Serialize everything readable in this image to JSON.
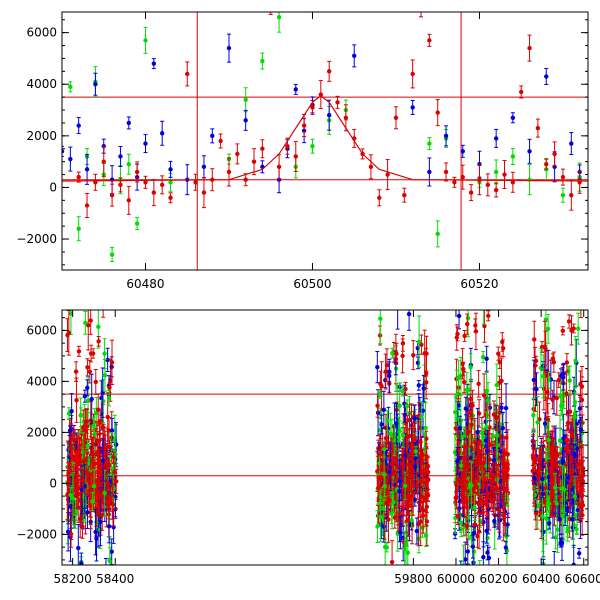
{
  "chart_data": [
    {
      "type": "scatter",
      "panel": "top",
      "xlim": [
        60470,
        60533
      ],
      "ylim": [
        -3200,
        6800
      ],
      "x_ticks": [
        60480,
        60500,
        60520
      ],
      "y_ticks": [
        -2000,
        0,
        2000,
        4000,
        6000
      ],
      "x_tick_labels": [
        "60480",
        "60500",
        "60520"
      ],
      "y_tick_labels": [
        "−2000",
        "0",
        "2000",
        "4000",
        "6000"
      ],
      "hlines": [
        3500,
        300
      ],
      "vlines": [
        60486.2,
        60517.8
      ],
      "series": [
        {
          "color": "#00dd00",
          "points": [
            [
              60471,
              3900
            ],
            [
              60472,
              -1600
            ],
            [
              60473,
              1200
            ],
            [
              60474,
              4100
            ],
            [
              60475,
              500
            ],
            [
              60476,
              -2600
            ],
            [
              60477,
              300
            ],
            [
              60478,
              900
            ],
            [
              60479,
              -1400
            ],
            [
              60480,
              5700
            ],
            [
              60483,
              200
            ],
            [
              60490,
              1100
            ],
            [
              60492,
              3400
            ],
            [
              60494,
              4900
            ],
            [
              60496,
              6600
            ],
            [
              60498,
              800
            ],
            [
              60500,
              1600
            ],
            [
              60502,
              2600
            ],
            [
              60504,
              3000
            ],
            [
              60514,
              1700
            ],
            [
              60515,
              -1800
            ],
            [
              60516,
              1900
            ],
            [
              60520,
              200
            ],
            [
              60522,
              600
            ],
            [
              60524,
              1200
            ],
            [
              60526,
              300
            ],
            [
              60528,
              700
            ],
            [
              60530,
              -300
            ],
            [
              60532,
              400
            ]
          ]
        },
        {
          "color": "#0000dd",
          "points": [
            [
              60470,
              1400
            ],
            [
              60471,
              1100
            ],
            [
              60472,
              2400
            ],
            [
              60473,
              700
            ],
            [
              60474,
              4000
            ],
            [
              60475,
              1600
            ],
            [
              60476,
              300
            ],
            [
              60477,
              1200
            ],
            [
              60478,
              2500
            ],
            [
              60479,
              400
            ],
            [
              60480,
              1700
            ],
            [
              60481,
              4800
            ],
            [
              60482,
              2100
            ],
            [
              60483,
              700
            ],
            [
              60485,
              300
            ],
            [
              60487,
              800
            ],
            [
              60488,
              2000
            ],
            [
              60490,
              5400
            ],
            [
              60492,
              2600
            ],
            [
              60494,
              800
            ],
            [
              60496,
              300
            ],
            [
              60497,
              1500
            ],
            [
              60498,
              3800
            ],
            [
              60499,
              2200
            ],
            [
              60500,
              3200
            ],
            [
              60502,
              2800
            ],
            [
              60505,
              5100
            ],
            [
              60512,
              3100
            ],
            [
              60514,
              600
            ],
            [
              60516,
              2000
            ],
            [
              60518,
              1400
            ],
            [
              60520,
              900
            ],
            [
              60522,
              1900
            ],
            [
              60524,
              2700
            ],
            [
              60526,
              1400
            ],
            [
              60528,
              4300
            ],
            [
              60529,
              800
            ],
            [
              60531,
              1700
            ],
            [
              60532,
              600
            ]
          ]
        },
        {
          "color": "#dd0000",
          "points": [
            [
              60472,
              400
            ],
            [
              60473,
              -700
            ],
            [
              60474,
              200
            ],
            [
              60475,
              1000
            ],
            [
              60476,
              -300
            ],
            [
              60477,
              100
            ],
            [
              60478,
              -500
            ],
            [
              60479,
              600
            ],
            [
              60480,
              200
            ],
            [
              60481,
              -200
            ],
            [
              60482,
              100
            ],
            [
              60483,
              -400
            ],
            [
              60485,
              4400
            ],
            [
              60486,
              200
            ],
            [
              60487,
              -200
            ],
            [
              60488,
              300
            ],
            [
              60489,
              1800
            ],
            [
              60490,
              600
            ],
            [
              60491,
              1300
            ],
            [
              60492,
              300
            ],
            [
              60493,
              1000
            ],
            [
              60494,
              1500
            ],
            [
              60495,
              6900
            ],
            [
              60496,
              800
            ],
            [
              60497,
              1600
            ],
            [
              60498,
              1200
            ],
            [
              60499,
              2400
            ],
            [
              60500,
              3100
            ],
            [
              60501,
              3600
            ],
            [
              60502,
              4500
            ],
            [
              60503,
              3300
            ],
            [
              60504,
              2700
            ],
            [
              60505,
              1900
            ],
            [
              60506,
              1300
            ],
            [
              60507,
              800
            ],
            [
              60508,
              -400
            ],
            [
              60509,
              500
            ],
            [
              60510,
              2700
            ],
            [
              60511,
              -300
            ],
            [
              60512,
              4400
            ],
            [
              60513,
              7000
            ],
            [
              60514,
              5700
            ],
            [
              60515,
              2900
            ],
            [
              60516,
              600
            ],
            [
              60517,
              200
            ],
            [
              60518,
              400
            ],
            [
              60519,
              -200
            ],
            [
              60520,
              300
            ],
            [
              60521,
              100
            ],
            [
              60522,
              -100
            ],
            [
              60523,
              500
            ],
            [
              60524,
              200
            ],
            [
              60525,
              3700
            ],
            [
              60526,
              5400
            ],
            [
              60527,
              2300
            ],
            [
              60528,
              900
            ],
            [
              60529,
              1300
            ],
            [
              60530,
              400
            ],
            [
              60531,
              -300
            ],
            [
              60532,
              200
            ]
          ]
        }
      ],
      "model_curve": [
        [
          60470,
          250
        ],
        [
          60490,
          300
        ],
        [
          60494,
          700
        ],
        [
          60496,
          1300
        ],
        [
          60498,
          2300
        ],
        [
          60500,
          3300
        ],
        [
          60501,
          3550
        ],
        [
          60502,
          3300
        ],
        [
          60504,
          2300
        ],
        [
          60506,
          1300
        ],
        [
          60508,
          700
        ],
        [
          60512,
          300
        ],
        [
          60533,
          250
        ]
      ]
    },
    {
      "type": "scatter",
      "panel": "bottom",
      "xlim": [
        58150,
        60620
      ],
      "ylim": [
        -3200,
        6800
      ],
      "x_ticks": [
        58200,
        58400,
        59800,
        60000,
        60200,
        60400,
        60600
      ],
      "y_ticks": [
        -2000,
        0,
        2000,
        4000,
        6000
      ],
      "x_tick_labels": [
        "58200",
        "58400",
        "59800",
        "60000",
        "60200",
        "60400",
        "60600"
      ],
      "y_tick_labels": [
        "−2000",
        "0",
        "2000",
        "4000",
        "6000"
      ],
      "hlines": [
        3500,
        300
      ],
      "seasons": [
        [
          58175,
          58405
        ],
        [
          59630,
          59870
        ],
        [
          59995,
          60245
        ],
        [
          60360,
          60600
        ]
      ],
      "series_colors": [
        "#00dd00",
        "#0000dd",
        "#dd0000"
      ]
    }
  ]
}
